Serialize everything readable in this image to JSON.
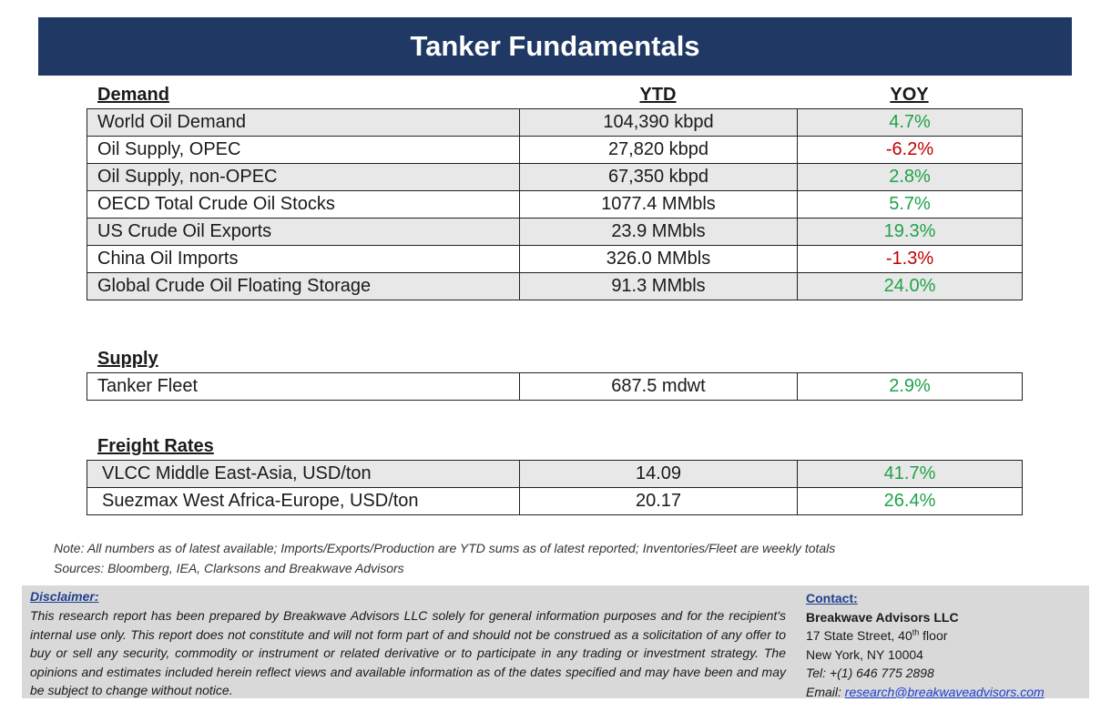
{
  "title": "Tanker Fundamentals",
  "columns": {
    "ytd": "YTD",
    "yoy": "YOY"
  },
  "demand": {
    "heading": "Demand",
    "rows": [
      {
        "label": "World Oil Demand",
        "ytd": "104,390 kbpd",
        "yoy": "4.7%",
        "sign": "pos"
      },
      {
        "label": "Oil Supply, OPEC",
        "ytd": "27,820 kbpd",
        "yoy": "-6.2%",
        "sign": "neg"
      },
      {
        "label": "Oil Supply, non-OPEC",
        "ytd": "67,350 kbpd",
        "yoy": "2.8%",
        "sign": "pos"
      },
      {
        "label": "OECD Total Crude Oil Stocks",
        "ytd": "1077.4 MMbls",
        "yoy": "5.7%",
        "sign": "pos"
      },
      {
        "label": "US Crude Oil Exports",
        "ytd": "23.9 MMbls",
        "yoy": "19.3%",
        "sign": "pos"
      },
      {
        "label": "China Oil Imports",
        "ytd": "326.0 MMbls",
        "yoy": "-1.3%",
        "sign": "neg"
      },
      {
        "label": "Global Crude Oil Floating Storage",
        "ytd": "91.3 MMbls",
        "yoy": "24.0%",
        "sign": "pos"
      }
    ]
  },
  "supply": {
    "heading": "Supply",
    "rows": [
      {
        "label": "Tanker Fleet",
        "ytd": "687.5 mdwt",
        "yoy": "2.9%",
        "sign": "pos"
      }
    ]
  },
  "freight": {
    "heading": "Freight Rates",
    "rows": [
      {
        "label": "VLCC Middle East-Asia, USD/ton",
        "ytd": "14.09",
        "yoy": "41.7%",
        "sign": "pos"
      },
      {
        "label": "Suezmax West Africa-Europe, USD/ton",
        "ytd": "20.17",
        "yoy": "26.4%",
        "sign": "pos"
      }
    ]
  },
  "note": "Note:  All numbers as of latest available; Imports/Exports/Production are YTD sums as of latest reported; Inventories/Fleet are weekly totals",
  "sources": "Sources: Bloomberg, IEA, Clarksons and Breakwave Advisors",
  "disclaimer": {
    "title": "Disclaimer:",
    "text": "This research report has been prepared by Breakwave Advisors LLC solely for general information purposes and for the recipient's internal use only. This report does not constitute and will not form part of and should not be construed as a solicitation of any offer to buy or sell any security, commodity or instrument or related derivative or to participate in any trading or investment strategy. The opinions and estimates included herein reflect views and available information as of the dates specified and may have been and may be subject to change without notice."
  },
  "contact": {
    "title": "Contact:",
    "firm": "Breakwave Advisors LLC",
    "address_pre": "17 State Street, 40",
    "address_sup": "th",
    "address_post": " floor",
    "city": "New York, NY 10004",
    "tel": "Tel: +(1) 646 775 2898",
    "email_label": "Email: ",
    "email": "research@breakwaveadvisors.com"
  },
  "colors": {
    "header_bg": "#1f3864",
    "positive": "#1fa24a",
    "negative": "#c00000",
    "shade": "#e8e8e8",
    "disclaimer_bg": "#d9d9d9"
  }
}
